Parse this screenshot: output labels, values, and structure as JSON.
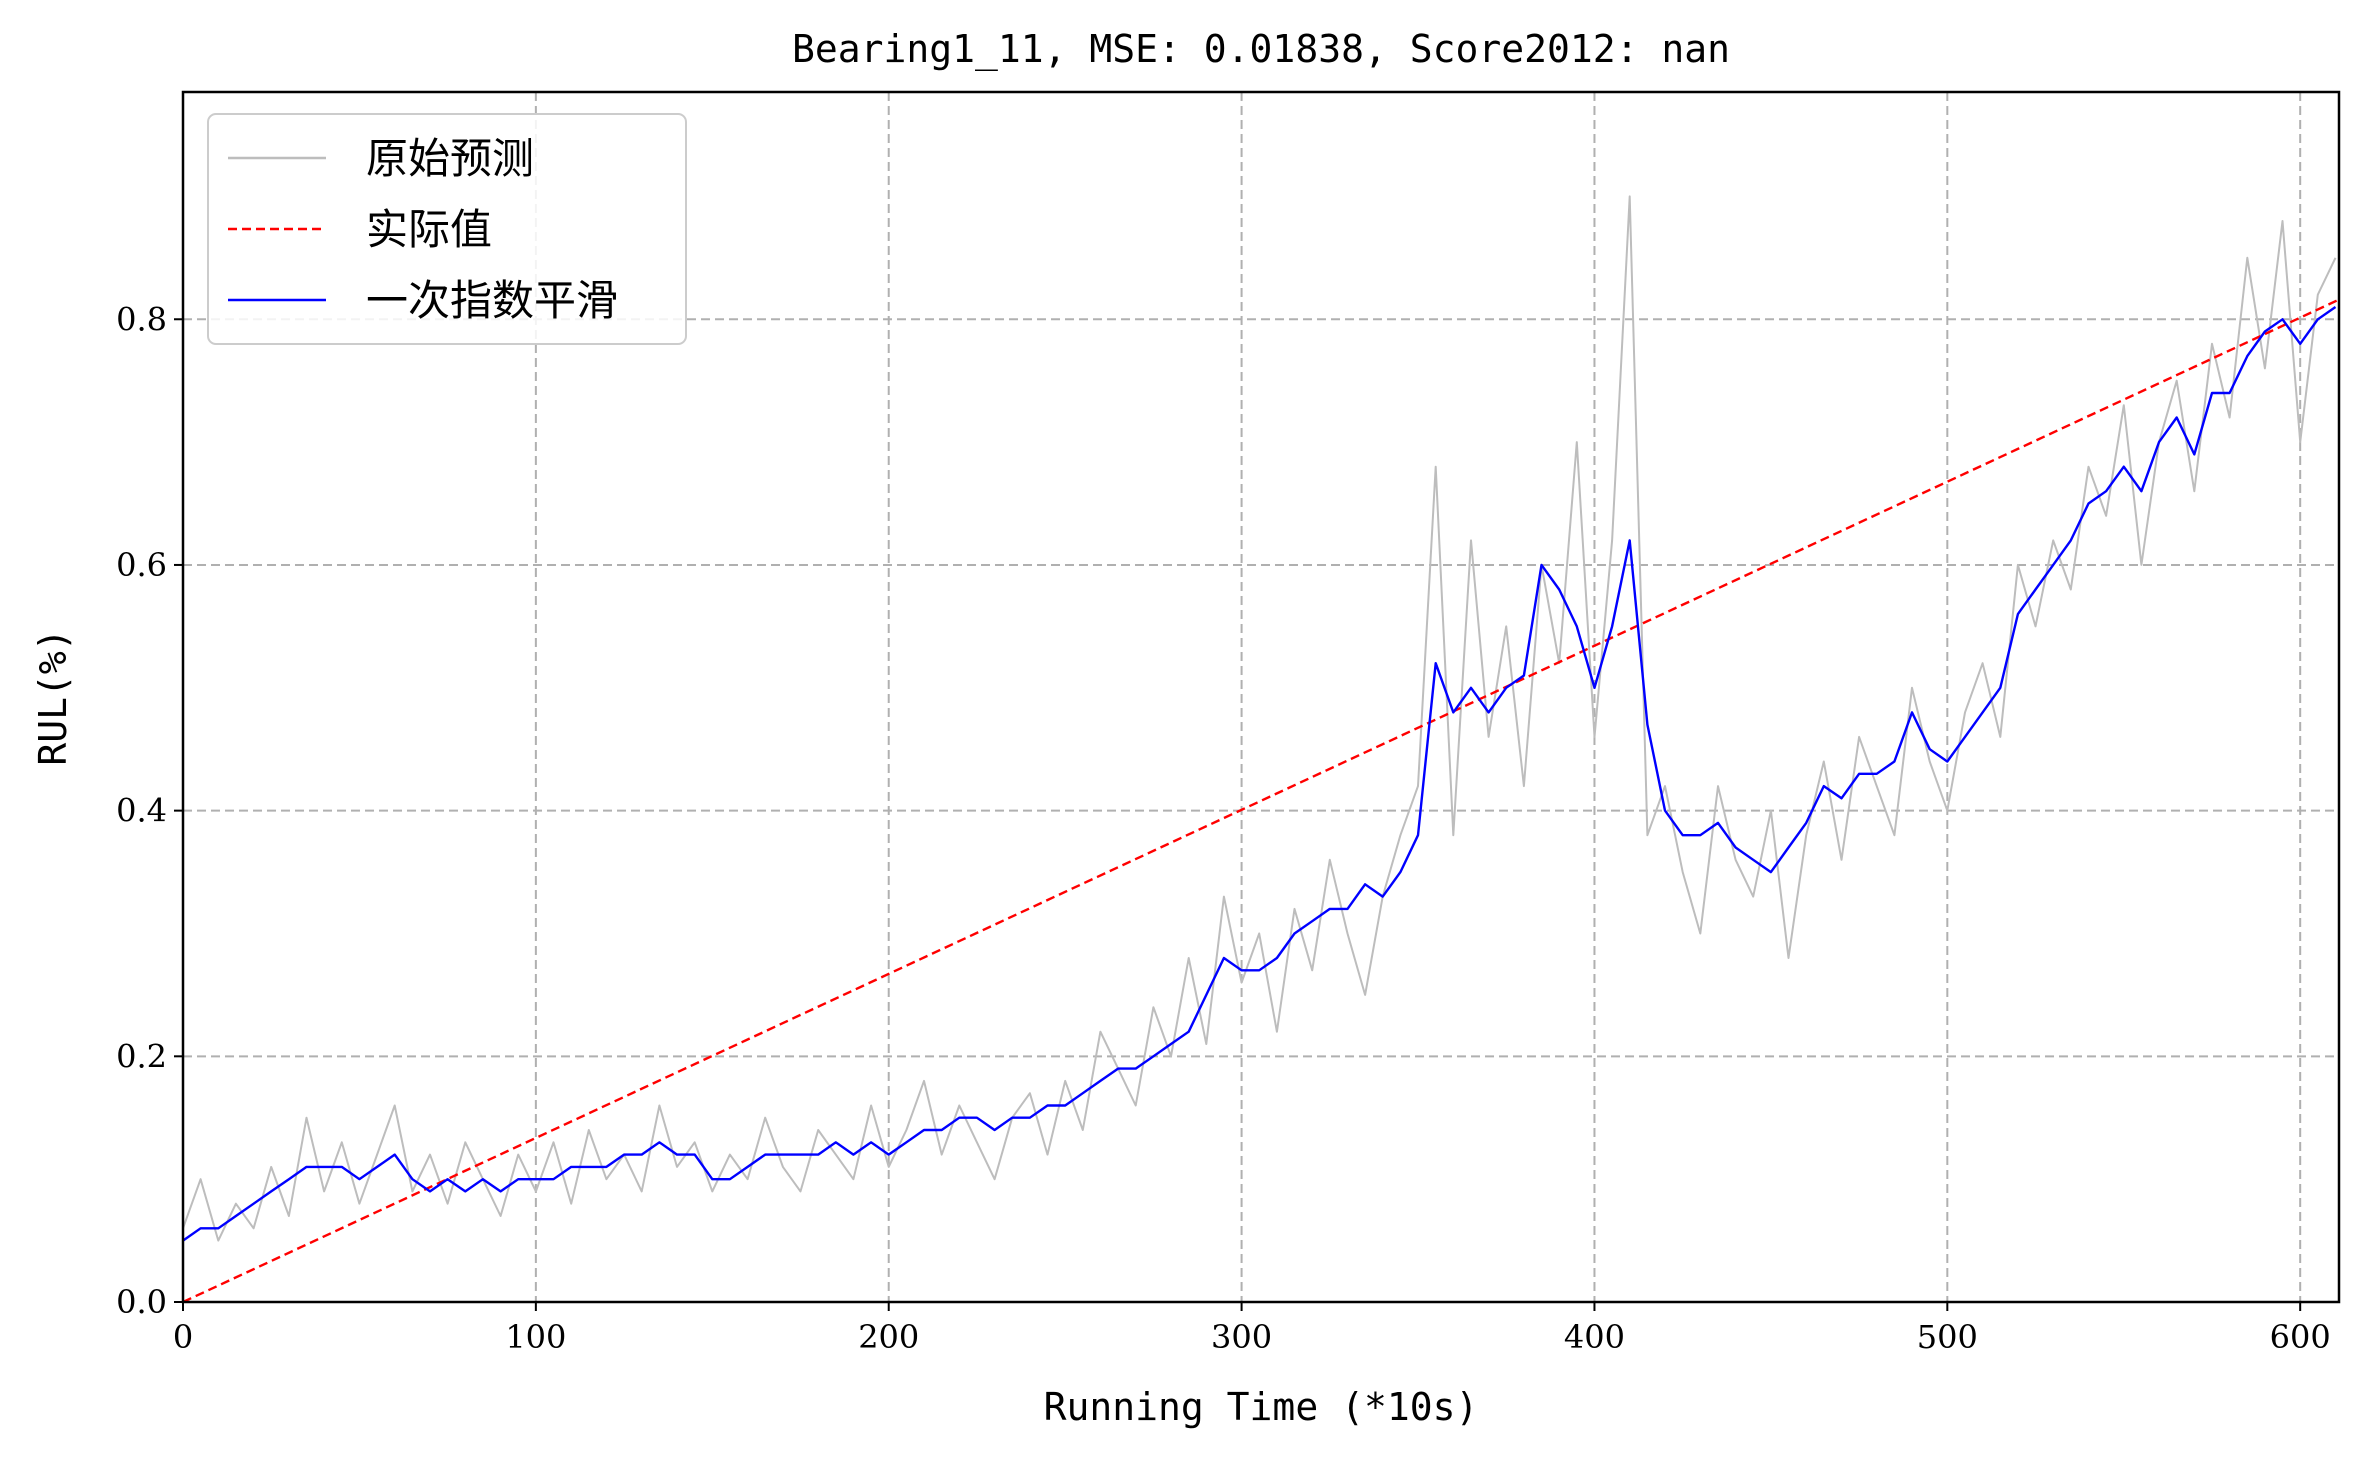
{
  "chart_data": {
    "type": "line",
    "title": "Bearing1_11, MSE: 0.01838, Score2012: nan",
    "xlabel": "Running Time (*10s)",
    "ylabel": "RUL(%)",
    "xlim": [
      0,
      611
    ],
    "ylim": [
      0,
      0.985
    ],
    "xticks": [
      0,
      100,
      200,
      300,
      400,
      500,
      600
    ],
    "yticks": [
      0.0,
      0.2,
      0.4,
      0.6,
      0.8
    ],
    "xtick_labels": [
      "0",
      "100",
      "200",
      "300",
      "400",
      "500",
      "600"
    ],
    "ytick_labels": [
      "0.0",
      "0.2",
      "0.4",
      "0.6",
      "0.8"
    ],
    "grid": true,
    "legend_position": "top-left",
    "legend": [
      "原始预测",
      "实际值",
      "一次指数平滑"
    ],
    "series": [
      {
        "name": "原始预测",
        "color": "#bdbdbd",
        "style": "solid",
        "x": [
          0,
          5,
          10,
          15,
          20,
          25,
          30,
          35,
          40,
          45,
          50,
          55,
          60,
          65,
          70,
          75,
          80,
          85,
          90,
          95,
          100,
          105,
          110,
          115,
          120,
          125,
          130,
          135,
          140,
          145,
          150,
          155,
          160,
          165,
          170,
          175,
          180,
          185,
          190,
          195,
          200,
          205,
          210,
          215,
          220,
          225,
          230,
          235,
          240,
          245,
          250,
          255,
          260,
          265,
          270,
          275,
          280,
          285,
          290,
          295,
          300,
          305,
          310,
          315,
          320,
          325,
          330,
          335,
          340,
          345,
          350,
          355,
          360,
          365,
          370,
          375,
          380,
          385,
          390,
          395,
          400,
          405,
          410,
          415,
          420,
          425,
          430,
          435,
          440,
          445,
          450,
          455,
          460,
          465,
          470,
          475,
          480,
          485,
          490,
          495,
          500,
          505,
          510,
          515,
          520,
          525,
          530,
          535,
          540,
          545,
          550,
          555,
          560,
          565,
          570,
          575,
          580,
          585,
          590,
          595,
          600,
          605,
          610
        ],
        "values": [
          0.06,
          0.1,
          0.05,
          0.08,
          0.06,
          0.11,
          0.07,
          0.15,
          0.09,
          0.13,
          0.08,
          0.12,
          0.16,
          0.09,
          0.12,
          0.08,
          0.13,
          0.1,
          0.07,
          0.12,
          0.09,
          0.13,
          0.08,
          0.14,
          0.1,
          0.12,
          0.09,
          0.16,
          0.11,
          0.13,
          0.09,
          0.12,
          0.1,
          0.15,
          0.11,
          0.09,
          0.14,
          0.12,
          0.1,
          0.16,
          0.11,
          0.14,
          0.18,
          0.12,
          0.16,
          0.13,
          0.1,
          0.15,
          0.17,
          0.12,
          0.18,
          0.14,
          0.22,
          0.19,
          0.16,
          0.24,
          0.2,
          0.28,
          0.21,
          0.33,
          0.26,
          0.3,
          0.22,
          0.32,
          0.27,
          0.36,
          0.3,
          0.25,
          0.33,
          0.38,
          0.42,
          0.68,
          0.38,
          0.62,
          0.46,
          0.55,
          0.42,
          0.6,
          0.52,
          0.7,
          0.46,
          0.62,
          0.9,
          0.38,
          0.42,
          0.35,
          0.3,
          0.42,
          0.36,
          0.33,
          0.4,
          0.28,
          0.38,
          0.44,
          0.36,
          0.46,
          0.42,
          0.38,
          0.5,
          0.44,
          0.4,
          0.48,
          0.52,
          0.46,
          0.6,
          0.55,
          0.62,
          0.58,
          0.68,
          0.64,
          0.73,
          0.6,
          0.7,
          0.75,
          0.66,
          0.78,
          0.72,
          0.85,
          0.76,
          0.88,
          0.7,
          0.82,
          0.85
        ]
      },
      {
        "name": "实际值",
        "color": "#ff0000",
        "style": "dashed",
        "x": [
          0,
          611
        ],
        "values": [
          0.0,
          0.816
        ]
      },
      {
        "name": "一次指数平滑",
        "color": "#0000ff",
        "style": "solid",
        "x": [
          0,
          5,
          10,
          15,
          20,
          25,
          30,
          35,
          40,
          45,
          50,
          55,
          60,
          65,
          70,
          75,
          80,
          85,
          90,
          95,
          100,
          105,
          110,
          115,
          120,
          125,
          130,
          135,
          140,
          145,
          150,
          155,
          160,
          165,
          170,
          175,
          180,
          185,
          190,
          195,
          200,
          205,
          210,
          215,
          220,
          225,
          230,
          235,
          240,
          245,
          250,
          255,
          260,
          265,
          270,
          275,
          280,
          285,
          290,
          295,
          300,
          305,
          310,
          315,
          320,
          325,
          330,
          335,
          340,
          345,
          350,
          355,
          360,
          365,
          370,
          375,
          380,
          385,
          390,
          395,
          400,
          405,
          410,
          415,
          420,
          425,
          430,
          435,
          440,
          445,
          450,
          455,
          460,
          465,
          470,
          475,
          480,
          485,
          490,
          495,
          500,
          505,
          510,
          515,
          520,
          525,
          530,
          535,
          540,
          545,
          550,
          555,
          560,
          565,
          570,
          575,
          580,
          585,
          590,
          595,
          600,
          605,
          610
        ],
        "values": [
          0.05,
          0.06,
          0.06,
          0.07,
          0.08,
          0.09,
          0.1,
          0.11,
          0.11,
          0.11,
          0.1,
          0.11,
          0.12,
          0.1,
          0.09,
          0.1,
          0.09,
          0.1,
          0.09,
          0.1,
          0.1,
          0.1,
          0.11,
          0.11,
          0.11,
          0.12,
          0.12,
          0.13,
          0.12,
          0.12,
          0.1,
          0.1,
          0.11,
          0.12,
          0.12,
          0.12,
          0.12,
          0.13,
          0.12,
          0.13,
          0.12,
          0.13,
          0.14,
          0.14,
          0.15,
          0.15,
          0.14,
          0.15,
          0.15,
          0.16,
          0.16,
          0.17,
          0.18,
          0.19,
          0.19,
          0.2,
          0.21,
          0.22,
          0.25,
          0.28,
          0.27,
          0.27,
          0.28,
          0.3,
          0.31,
          0.32,
          0.32,
          0.34,
          0.33,
          0.35,
          0.38,
          0.52,
          0.48,
          0.5,
          0.48,
          0.5,
          0.51,
          0.6,
          0.58,
          0.55,
          0.5,
          0.55,
          0.62,
          0.47,
          0.4,
          0.38,
          0.38,
          0.39,
          0.37,
          0.36,
          0.35,
          0.37,
          0.39,
          0.42,
          0.41,
          0.43,
          0.43,
          0.44,
          0.48,
          0.45,
          0.44,
          0.46,
          0.48,
          0.5,
          0.56,
          0.58,
          0.6,
          0.62,
          0.65,
          0.66,
          0.68,
          0.66,
          0.7,
          0.72,
          0.69,
          0.74,
          0.74,
          0.77,
          0.79,
          0.8,
          0.78,
          0.8,
          0.81
        ]
      }
    ]
  }
}
